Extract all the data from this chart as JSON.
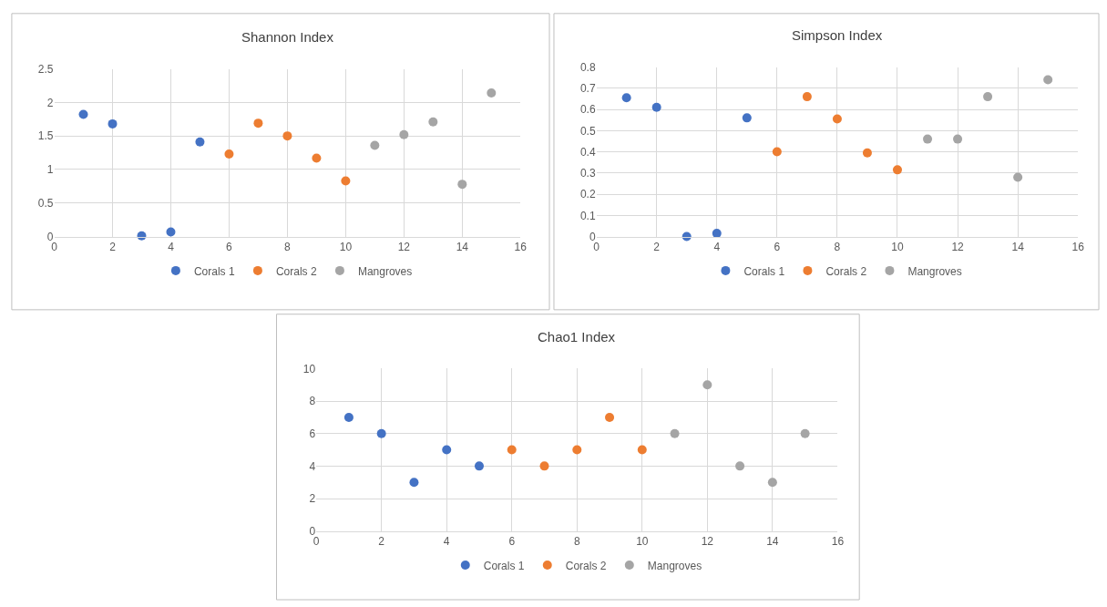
{
  "chart_data": [
    {
      "type": "scatter",
      "title": "Shannon Index",
      "xlim": [
        0,
        16
      ],
      "xticks": [
        0,
        2,
        4,
        6,
        8,
        10,
        12,
        14,
        16
      ],
      "ylim": [
        0,
        2.5
      ],
      "yticks": [
        0,
        0.5,
        1,
        1.5,
        2,
        2.5
      ],
      "grid": true,
      "legend": "bottom",
      "marker": "circle",
      "series": [
        {
          "name": "Corals 1",
          "color": "#4472c4",
          "x": [
            1,
            2,
            3,
            4,
            5
          ],
          "values": [
            1.82,
            1.68,
            0.01,
            0.07,
            1.41
          ]
        },
        {
          "name": "Corals 2",
          "color": "#ed7d31",
          "x": [
            6,
            7,
            8,
            9,
            10
          ],
          "values": [
            1.23,
            1.69,
            1.5,
            1.17,
            0.83
          ]
        },
        {
          "name": "Mangroves",
          "color": "#a5a5a5",
          "x": [
            11,
            12,
            13,
            14,
            15
          ],
          "values": [
            1.36,
            1.52,
            1.71,
            0.78,
            2.14
          ]
        }
      ]
    },
    {
      "type": "scatter",
      "title": "Simpson Index",
      "xlim": [
        0,
        16
      ],
      "xticks": [
        0,
        2,
        4,
        6,
        8,
        10,
        12,
        14,
        16
      ],
      "ylim": [
        0,
        0.8
      ],
      "yticks": [
        0,
        0.1,
        0.2,
        0.3,
        0.4,
        0.5,
        0.6,
        0.7,
        0.8
      ],
      "grid": true,
      "legend": "bottom",
      "marker": "circle",
      "series": [
        {
          "name": "Corals 1",
          "color": "#4472c4",
          "x": [
            1,
            2,
            3,
            4,
            5
          ],
          "values": [
            0.655,
            0.61,
            0,
            0.015,
            0.56
          ]
        },
        {
          "name": "Corals 2",
          "color": "#ed7d31",
          "x": [
            6,
            7,
            8,
            9,
            10
          ],
          "values": [
            0.4,
            0.66,
            0.555,
            0.395,
            0.315
          ]
        },
        {
          "name": "Mangroves",
          "color": "#a5a5a5",
          "x": [
            11,
            12,
            13,
            14,
            15
          ],
          "values": [
            0.46,
            0.46,
            0.66,
            0.28,
            0.74
          ]
        }
      ]
    },
    {
      "type": "scatter",
      "title": "Chao1 Index",
      "xlim": [
        0,
        16
      ],
      "xticks": [
        0,
        2,
        4,
        6,
        8,
        10,
        12,
        14,
        16
      ],
      "ylim": [
        0,
        10
      ],
      "yticks": [
        0,
        2,
        4,
        6,
        8,
        10
      ],
      "grid": true,
      "legend": "bottom",
      "marker": "circle",
      "series": [
        {
          "name": "Corals 1",
          "color": "#4472c4",
          "x": [
            1,
            2,
            3,
            4,
            5
          ],
          "values": [
            7,
            6,
            3,
            5,
            4
          ]
        },
        {
          "name": "Corals 2",
          "color": "#ed7d31",
          "x": [
            6,
            7,
            8,
            9,
            10
          ],
          "values": [
            5,
            4,
            5,
            7,
            5
          ]
        },
        {
          "name": "Mangroves",
          "color": "#a5a5a5",
          "x": [
            11,
            12,
            13,
            14,
            15
          ],
          "values": [
            6,
            9,
            4,
            3,
            6
          ]
        }
      ]
    }
  ]
}
